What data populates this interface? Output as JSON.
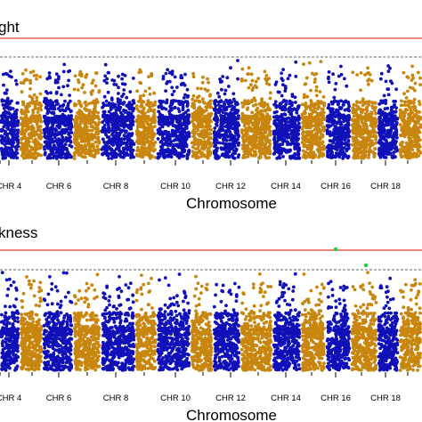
{
  "colors": {
    "blue": "#1010b8",
    "orange": "#c8860e",
    "threshold_red": "#e03a32",
    "threshold_black": "#333333",
    "highlight": "#22cc33"
  },
  "chart_data": [
    {
      "type": "scatter",
      "title": "ght",
      "xlabel": "Chromosome",
      "ylabel": "",
      "grid": false,
      "x_tick_labels": [
        "CHR 4",
        "CHR 6",
        "CHR 8",
        "CHR 10",
        "CHR 12",
        "CHR 14",
        "CHR 16",
        "CHR 18"
      ],
      "thresholds": [
        {
          "style": "solid",
          "color": "red"
        },
        {
          "style": "dashed",
          "color": "black"
        }
      ],
      "series": [
        {
          "color": "blue",
          "chromosomes": [
            3,
            5,
            7,
            9,
            11,
            13,
            15,
            17,
            19
          ]
        },
        {
          "color": "orange",
          "chromosomes": [
            4,
            6,
            8,
            10,
            12,
            14,
            16,
            18,
            20
          ]
        }
      ]
    },
    {
      "type": "scatter",
      "title": "kness",
      "xlabel": "Chromosome",
      "ylabel": "",
      "grid": false,
      "x_tick_labels": [
        "CHR 4",
        "CHR 6",
        "CHR 8",
        "CHR 10",
        "CHR 12",
        "CHR 14",
        "CHR 16",
        "CHR 18"
      ],
      "thresholds": [
        {
          "style": "solid",
          "color": "red"
        },
        {
          "style": "dashed",
          "color": "black"
        }
      ],
      "highlighted_points": [
        {
          "color": "green",
          "chromosome": 16
        },
        {
          "color": "green",
          "chromosome": 17
        }
      ],
      "series": [
        {
          "color": "blue",
          "chromosomes": [
            3,
            5,
            7,
            9,
            11,
            13,
            15,
            17,
            19
          ]
        },
        {
          "color": "orange",
          "chromosomes": [
            4,
            6,
            8,
            10,
            12,
            14,
            16,
            18,
            20
          ]
        }
      ]
    }
  ]
}
